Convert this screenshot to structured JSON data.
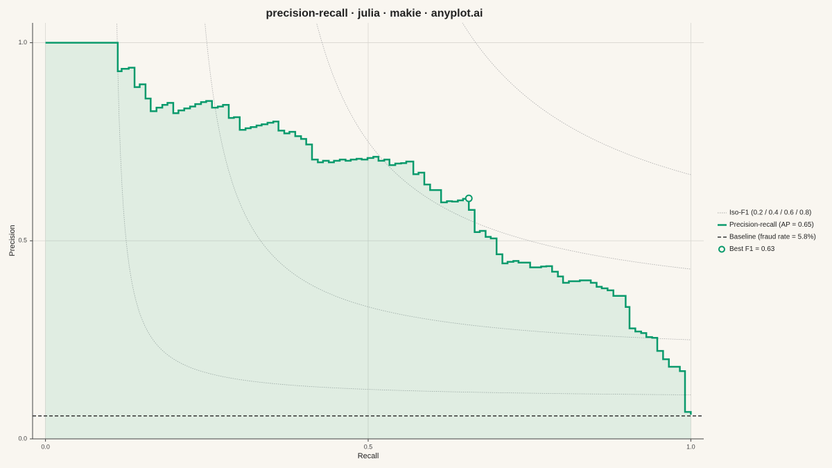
{
  "chart_data": {
    "type": "step",
    "title": "precision-recall · julia · makie · anyplot.ai",
    "x_label": "Recall",
    "y_label": "Precision",
    "xlim": [
      -0.02,
      1.02
    ],
    "ylim": [
      0,
      1.05
    ],
    "xticks": [
      {
        "value": 0,
        "label": "0.0"
      },
      0.5,
      {
        "value": 1,
        "label": "1.0"
      }
    ],
    "yticks": [
      {
        "value": 0,
        "label": "0.0"
      },
      0.5,
      {
        "value": 1,
        "label": "1.0"
      }
    ],
    "grid": true,
    "iso_f1": {
      "name": "Iso-F1 (0.2 / 0.4 / 0.6 / 0.8)",
      "color": "#aaaaaa",
      "values": [
        0.2,
        0.4,
        0.6,
        0.8
      ]
    },
    "series": [
      {
        "name": "Precision-recall (AP = 0.65)",
        "color": "#0a9a6c",
        "x": [
          0,
          0.112,
          0.118,
          0.129,
          0.138,
          0.146,
          0.155,
          0.163,
          0.172,
          0.181,
          0.189,
          0.198,
          0.206,
          0.215,
          0.224,
          0.232,
          0.241,
          0.249,
          0.258,
          0.267,
          0.275,
          0.284,
          0.292,
          0.301,
          0.31,
          0.318,
          0.327,
          0.335,
          0.344,
          0.353,
          0.361,
          0.37,
          0.378,
          0.387,
          0.396,
          0.404,
          0.413,
          0.422,
          0.43,
          0.439,
          0.447,
          0.456,
          0.465,
          0.473,
          0.482,
          0.49,
          0.499,
          0.508,
          0.516,
          0.525,
          0.533,
          0.542,
          0.551,
          0.559,
          0.57,
          0.578,
          0.587,
          0.596,
          0.613,
          0.622,
          0.63,
          0.639,
          0.647,
          0.656,
          0.665,
          0.673,
          0.682,
          0.69,
          0.699,
          0.708,
          0.716,
          0.725,
          0.733,
          0.742,
          0.751,
          0.759,
          0.768,
          0.776,
          0.785,
          0.794,
          0.802,
          0.811,
          0.819,
          0.828,
          0.837,
          0.845,
          0.854,
          0.862,
          0.871,
          0.88,
          0.899,
          0.905,
          0.914,
          0.923,
          0.931,
          0.94,
          0.948,
          0.957,
          0.966,
          0.983,
          0.991,
          1.0
        ],
        "values": [
          1.0,
          0.928,
          0.934,
          0.937,
          0.888,
          0.895,
          0.859,
          0.827,
          0.836,
          0.843,
          0.848,
          0.822,
          0.829,
          0.834,
          0.839,
          0.845,
          0.85,
          0.853,
          0.836,
          0.839,
          0.843,
          0.81,
          0.812,
          0.78,
          0.784,
          0.787,
          0.791,
          0.794,
          0.798,
          0.801,
          0.778,
          0.771,
          0.775,
          0.764,
          0.757,
          0.743,
          0.705,
          0.698,
          0.702,
          0.698,
          0.702,
          0.705,
          0.702,
          0.705,
          0.707,
          0.705,
          0.709,
          0.712,
          0.702,
          0.705,
          0.691,
          0.695,
          0.696,
          0.7,
          0.668,
          0.672,
          0.642,
          0.628,
          0.597,
          0.6,
          0.599,
          0.602,
          0.606,
          0.578,
          0.522,
          0.525,
          0.51,
          0.506,
          0.466,
          0.443,
          0.447,
          0.449,
          0.445,
          0.445,
          0.433,
          0.433,
          0.435,
          0.436,
          0.422,
          0.41,
          0.394,
          0.398,
          0.398,
          0.4,
          0.4,
          0.394,
          0.384,
          0.38,
          0.375,
          0.361,
          0.333,
          0.279,
          0.271,
          0.267,
          0.257,
          0.255,
          0.222,
          0.201,
          0.182,
          0.171,
          0.068,
          0.061
        ]
      }
    ],
    "baseline": {
      "name": "Baseline (fraud rate = 5.8%)",
      "value": 0.058,
      "color": "#333333"
    },
    "best": {
      "name": "Best F1 = 0.63",
      "x": 0.656,
      "y": 0.607,
      "color": "#0a9a6c"
    }
  }
}
